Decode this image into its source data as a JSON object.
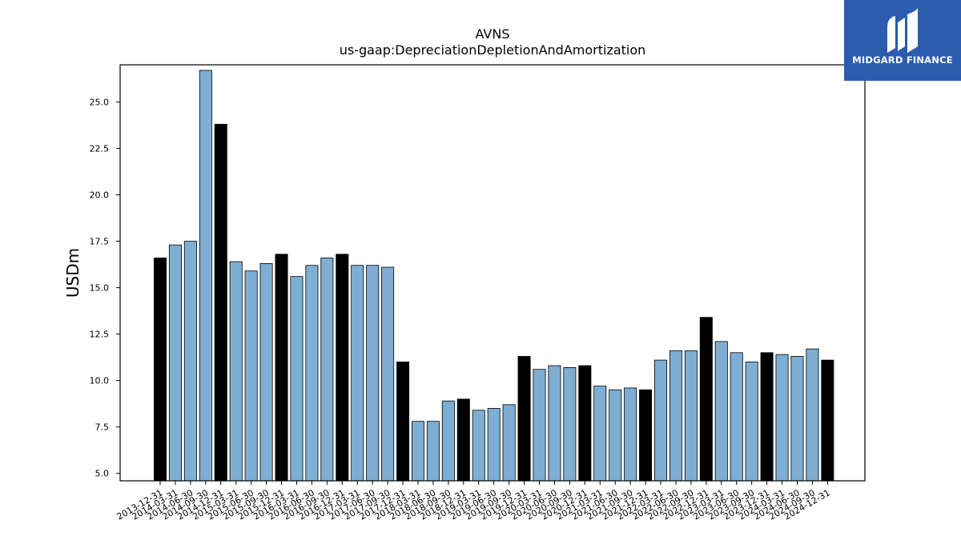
{
  "chart_data": {
    "type": "bar",
    "title": "AVNS",
    "subtitle": "us-gaap:DepreciationDepletionAndAmortization",
    "ylabel": "USDm",
    "xlabel": "",
    "ylim": [
      4.6,
      27.0
    ],
    "yticks": [
      "5.0",
      "7.5",
      "10.0",
      "12.5",
      "15.0",
      "17.5",
      "20.0",
      "22.5",
      "25.0"
    ],
    "categories": [
      "2013-12-31",
      "2014-03-31",
      "2014-06-30",
      "2014-09-30",
      "2014-12-31",
      "2015-03-31",
      "2015-06-30",
      "2015-09-30",
      "2015-12-31",
      "2016-03-31",
      "2016-06-30",
      "2016-09-30",
      "2016-12-31",
      "2017-03-31",
      "2017-06-30",
      "2017-09-30",
      "2017-12-31",
      "2018-03-31",
      "2018-06-30",
      "2018-09-30",
      "2018-12-31",
      "2019-03-31",
      "2019-06-30",
      "2019-09-30",
      "2019-12-31",
      "2020-03-31",
      "2020-06-30",
      "2020-09-30",
      "2020-12-31",
      "2021-03-31",
      "2021-06-30",
      "2021-09-30",
      "2021-12-31",
      "2022-03-31",
      "2022-06-30",
      "2022-09-30",
      "2022-12-31",
      "2023-03-31",
      "2023-06-30",
      "2023-09-30",
      "2023-12-31",
      "2024-03-31",
      "2024-06-30",
      "2024-09-30",
      "2024-12-31"
    ],
    "values": [
      16.6,
      17.3,
      17.5,
      26.7,
      23.8,
      16.4,
      15.9,
      16.3,
      16.8,
      15.6,
      16.2,
      16.6,
      16.8,
      16.2,
      16.2,
      16.1,
      11.0,
      7.8,
      7.8,
      8.9,
      9.0,
      8.4,
      8.5,
      8.7,
      11.3,
      10.6,
      10.8,
      10.7,
      10.8,
      9.7,
      9.5,
      9.6,
      9.5,
      11.1,
      11.6,
      11.6,
      13.4,
      12.1,
      11.5,
      11.0,
      11.5,
      11.4,
      11.3,
      11.7,
      11.1
    ],
    "annual": [
      true,
      false,
      false,
      false,
      true,
      false,
      false,
      false,
      true,
      false,
      false,
      false,
      true,
      false,
      false,
      false,
      true,
      false,
      false,
      false,
      true,
      false,
      false,
      false,
      true,
      false,
      false,
      false,
      true,
      false,
      false,
      false,
      true,
      false,
      false,
      false,
      true,
      false,
      false,
      false,
      true,
      false,
      false,
      false,
      true
    ],
    "colors": {
      "quarterly": "#7eaed3",
      "annual": "#000000",
      "edge": "#000000"
    },
    "grid": false,
    "legend": "none"
  },
  "logo": {
    "text": "MIDGARD FINANCE",
    "background": "#2b5cad"
  }
}
